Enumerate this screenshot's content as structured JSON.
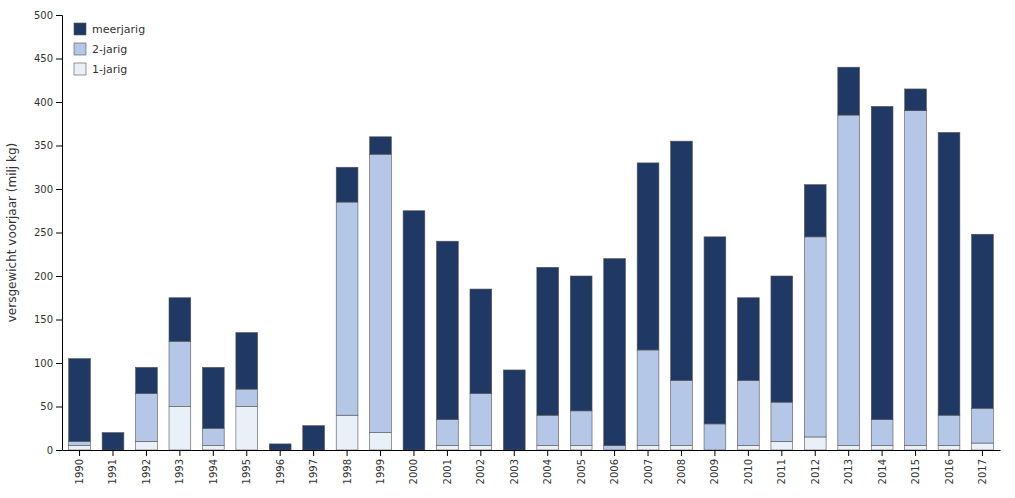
{
  "chart_data": {
    "type": "bar",
    "stacked": true,
    "categories": [
      1990,
      1991,
      1992,
      1993,
      1994,
      1995,
      1996,
      1997,
      1998,
      1999,
      2000,
      2001,
      2002,
      2003,
      2004,
      2005,
      2006,
      2007,
      2008,
      2009,
      2010,
      2011,
      2012,
      2013,
      2014,
      2015,
      2016,
      2017
    ],
    "series": [
      {
        "name": "1-jarig",
        "color": "#e9f0f8",
        "values": [
          5,
          0,
          10,
          50,
          5,
          50,
          0,
          0,
          40,
          20,
          0,
          5,
          5,
          0,
          5,
          5,
          0,
          5,
          5,
          0,
          5,
          10,
          15,
          5,
          5,
          5,
          5,
          8
        ]
      },
      {
        "name": "2-jarig",
        "color": "#b4c7e7",
        "values": [
          5,
          0,
          55,
          75,
          20,
          20,
          0,
          0,
          245,
          320,
          0,
          30,
          60,
          0,
          35,
          40,
          5,
          110,
          75,
          30,
          75,
          45,
          230,
          380,
          30,
          385,
          35,
          40
        ]
      },
      {
        "name": "meerjarig",
        "color": "#1f3864",
        "values": [
          95,
          20,
          30,
          50,
          70,
          65,
          7,
          28,
          40,
          20,
          275,
          205,
          120,
          92,
          170,
          155,
          215,
          215,
          275,
          215,
          95,
          145,
          60,
          55,
          360,
          25,
          325,
          200
        ]
      }
    ],
    "ylabel": "versgewicht voorjaar (milj kg)",
    "ylim": [
      0,
      500
    ],
    "yticks": [
      0,
      50,
      100,
      150,
      200,
      250,
      300,
      350,
      400,
      450,
      500
    ],
    "grid": false,
    "legend": "upper left"
  }
}
